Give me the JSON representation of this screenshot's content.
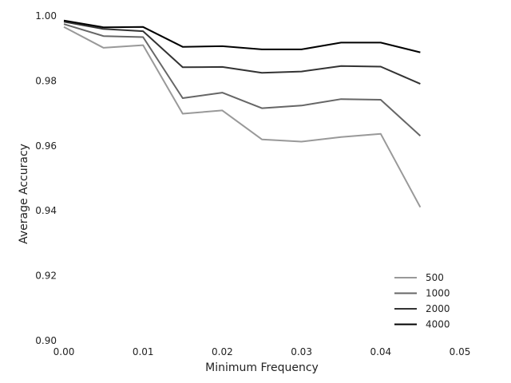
{
  "chart_data": {
    "type": "line",
    "title": "",
    "xlabel": "Minimum Frequency",
    "ylabel": "Average Accuracy",
    "xlim": [
      0.0,
      0.05
    ],
    "ylim": [
      0.9,
      1.0
    ],
    "xticks": [
      "0.00",
      "0.01",
      "0.02",
      "0.03",
      "0.04",
      "0.05"
    ],
    "yticks": [
      "0.90",
      "0.92",
      "0.94",
      "0.96",
      "0.98",
      "1.00"
    ],
    "grid": false,
    "legend_position": "bottom-right",
    "x": [
      0.0,
      0.005,
      0.01,
      0.015,
      0.02,
      0.025,
      0.03,
      0.035,
      0.04,
      0.045
    ],
    "series": [
      {
        "name": "500",
        "color": "#999999",
        "values": [
          0.9966,
          0.9902,
          0.991,
          0.9699,
          0.9709,
          0.962,
          0.9613,
          0.9627,
          0.9637,
          0.9411
        ]
      },
      {
        "name": "1000",
        "color": "#666666",
        "values": [
          0.9975,
          0.9938,
          0.9935,
          0.9747,
          0.9764,
          0.9716,
          0.9724,
          0.9744,
          0.9742,
          0.9631
        ]
      },
      {
        "name": "2000",
        "color": "#333333",
        "values": [
          0.9982,
          0.996,
          0.9953,
          0.9842,
          0.9843,
          0.9825,
          0.9829,
          0.9846,
          0.9844,
          0.9791
        ]
      },
      {
        "name": "4000",
        "color": "#000000",
        "values": [
          0.9986,
          0.9965,
          0.9966,
          0.9905,
          0.9907,
          0.9897,
          0.9897,
          0.9918,
          0.9918,
          0.9888
        ]
      }
    ]
  }
}
